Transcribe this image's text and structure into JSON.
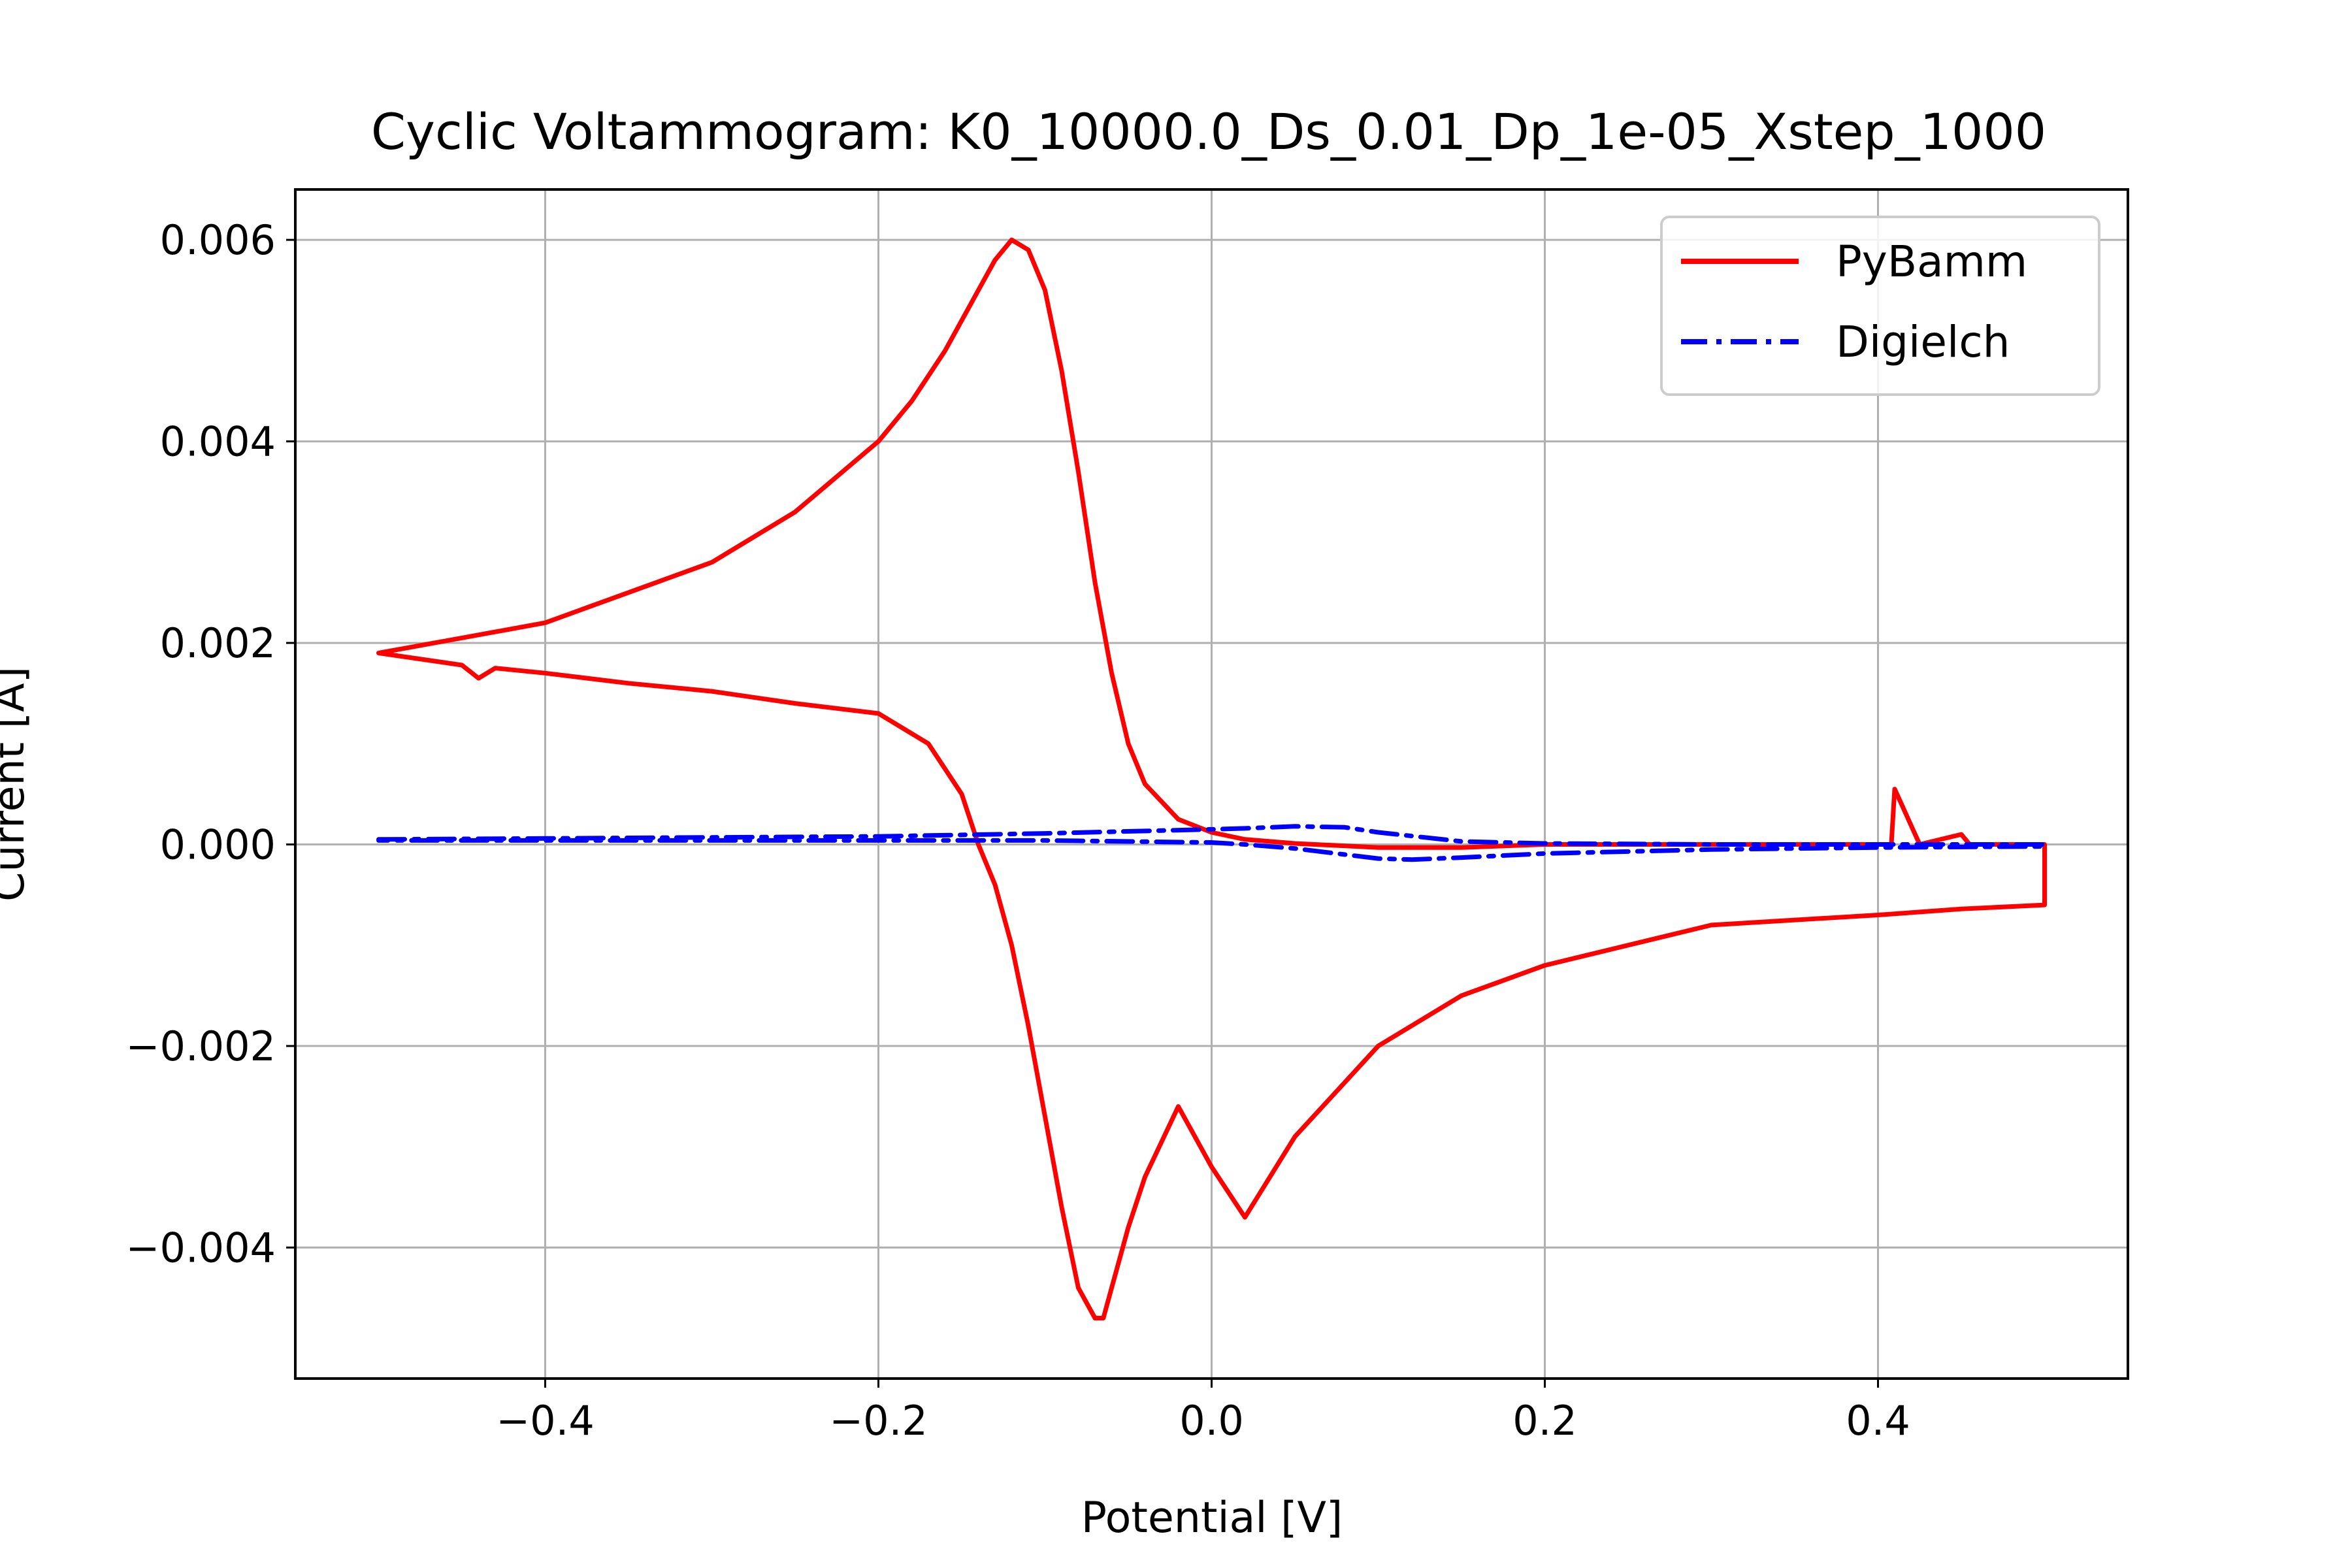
{
  "chart_data": {
    "type": "line",
    "title": "Cyclic Voltammogram: K0_10000.0_Ds_0.01_Dp_1e-05_Xstep_1000",
    "xlabel": "Potential [V]",
    "ylabel": "Current [A]",
    "xlim": [
      -0.55,
      0.55
    ],
    "ylim": [
      -0.0053,
      0.0065
    ],
    "x_ticks": [
      -0.4,
      -0.2,
      0.0,
      0.2,
      0.4
    ],
    "y_ticks": [
      -0.004,
      -0.002,
      0.0,
      0.002,
      0.004,
      0.006
    ],
    "x_tick_labels": [
      "−0.4",
      "−0.2",
      "0.0",
      "0.2",
      "0.4"
    ],
    "y_tick_labels": [
      "−0.004",
      "−0.002",
      "0.000",
      "0.002",
      "0.004",
      "0.006"
    ],
    "grid": true,
    "legend_position": "top-right",
    "series": [
      {
        "name": "PyBamm",
        "color": "#ff0000",
        "line_style": "solid",
        "x": [
          -0.5,
          -0.45,
          -0.4,
          -0.35,
          -0.3,
          -0.25,
          -0.2,
          -0.18,
          -0.16,
          -0.14,
          -0.13,
          -0.12,
          -0.11,
          -0.1,
          -0.09,
          -0.08,
          -0.07,
          -0.06,
          -0.05,
          -0.04,
          -0.02,
          0.0,
          0.02,
          0.05,
          0.1,
          0.15,
          0.2,
          0.3,
          0.4,
          0.408,
          0.41,
          0.425,
          0.45,
          0.455,
          0.5,
          0.5,
          0.45,
          0.4,
          0.3,
          0.2,
          0.15,
          0.1,
          0.05,
          0.02,
          0.0,
          -0.02,
          -0.04,
          -0.05,
          -0.06,
          -0.065,
          -0.07,
          -0.08,
          -0.09,
          -0.1,
          -0.11,
          -0.12,
          -0.13,
          -0.14,
          -0.15,
          -0.17,
          -0.2,
          -0.25,
          -0.3,
          -0.35,
          -0.4,
          -0.43,
          -0.44,
          -0.45,
          -0.5
        ],
        "y": [
          0.0019,
          0.00205,
          0.0022,
          0.0025,
          0.0028,
          0.0033,
          0.004,
          0.0044,
          0.0049,
          0.0055,
          0.0058,
          0.006,
          0.0059,
          0.0055,
          0.0047,
          0.0037,
          0.0026,
          0.0017,
          0.001,
          0.0006,
          0.00025,
          0.00012,
          5e-05,
          1e-05,
          -3e-05,
          -3e-05,
          0.0,
          0.0,
          0.0,
          0.0,
          0.00055,
          0.0,
          0.0001,
          0.0,
          0.0,
          -0.0006,
          -0.00064,
          -0.0007,
          -0.0008,
          -0.0012,
          -0.0015,
          -0.002,
          -0.0029,
          -0.0037,
          -0.0032,
          -0.0026,
          -0.0033,
          -0.0038,
          -0.0044,
          -0.0047,
          -0.0047,
          -0.0044,
          -0.0036,
          -0.0027,
          -0.0018,
          -0.001,
          -0.0004,
          0.0,
          0.0005,
          0.001,
          0.0013,
          0.0014,
          0.00152,
          0.0016,
          0.0017,
          0.00175,
          0.00165,
          0.00178,
          0.0019
        ]
      },
      {
        "name": "Digielch",
        "color": "#0000ff",
        "line_style": "dashdot",
        "x": [
          -0.5,
          -0.4,
          -0.3,
          -0.2,
          -0.1,
          0.0,
          0.02,
          0.05,
          0.08,
          0.1,
          0.15,
          0.2,
          0.3,
          0.4,
          0.5,
          0.5,
          0.4,
          0.3,
          0.2,
          0.15,
          0.12,
          0.1,
          0.08,
          0.05,
          0.02,
          0.0,
          -0.1,
          -0.2,
          -0.3,
          -0.4,
          -0.5
        ],
        "y": [
          5e-05,
          6e-05,
          7e-05,
          8e-05,
          0.00011,
          0.00015,
          0.00016,
          0.00018,
          0.00017,
          0.00012,
          3e-05,
          1e-05,
          0.0,
          0.0,
          0.0,
          -2e-05,
          -3e-05,
          -5e-05,
          -9e-05,
          -0.00013,
          -0.00015,
          -0.00014,
          -0.0001,
          -4e-05,
          0.0,
          2e-05,
          4e-05,
          4e-05,
          4e-05,
          4e-05,
          4e-05
        ]
      }
    ]
  }
}
